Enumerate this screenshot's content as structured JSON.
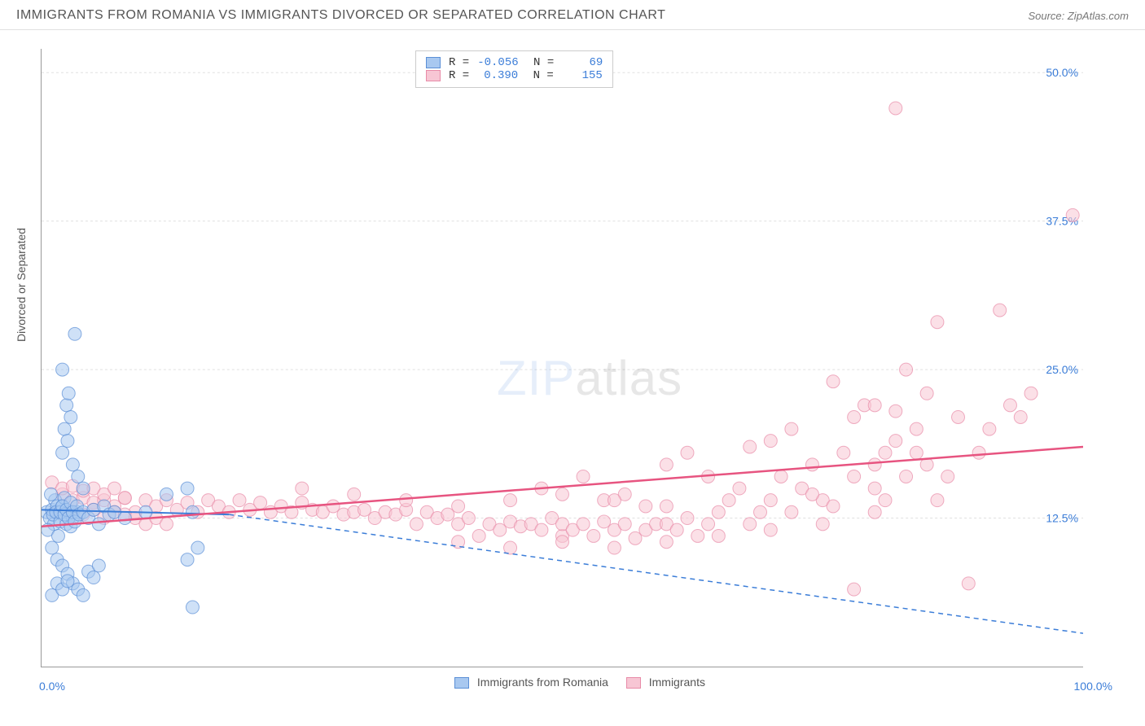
{
  "header": {
    "title": "IMMIGRANTS FROM ROMANIA VS IMMIGRANTS DIVORCED OR SEPARATED CORRELATION CHART",
    "source_prefix": "Source: ",
    "source_name": "ZipAtlas.com"
  },
  "chart": {
    "type": "scatter",
    "ylabel": "Divorced or Separated",
    "xlim": [
      0,
      100
    ],
    "ylim": [
      0,
      52
    ],
    "x_origin_label": "0.0%",
    "x_max_label": "100.0%",
    "y_ticks": [
      12.5,
      25.0,
      37.5,
      50.0
    ],
    "y_tick_labels": [
      "12.5%",
      "25.0%",
      "37.5%",
      "50.0%"
    ],
    "x_tick_positions": [
      0,
      12,
      25,
      37,
      50,
      62,
      75,
      87,
      100
    ],
    "background_color": "#ffffff",
    "grid_color": "#e0e0e0",
    "axis_color": "#999999",
    "marker_size": 8,
    "marker_opacity": 0.55,
    "series": {
      "romania": {
        "label": "Immigrants from Romania",
        "fill_color": "#a8c8f0",
        "stroke_color": "#5b8fd6",
        "R": "-0.056",
        "N": "69",
        "trend_line": {
          "x1": 0,
          "y1": 13.2,
          "x2": 18,
          "y2": 12.8,
          "dashed_extension": {
            "x1": 18,
            "y1": 12.8,
            "x2": 100,
            "y2": 2.8
          },
          "color": "#3b7dd8",
          "width": 2
        },
        "points": [
          [
            0.5,
            13.0
          ],
          [
            0.8,
            12.5
          ],
          [
            1.0,
            13.2
          ],
          [
            1.2,
            12.0
          ],
          [
            1.3,
            14.0
          ],
          [
            1.5,
            13.5
          ],
          [
            0.6,
            11.5
          ],
          [
            0.9,
            14.5
          ],
          [
            1.1,
            12.8
          ],
          [
            1.4,
            13.0
          ],
          [
            1.6,
            11.0
          ],
          [
            1.8,
            12.2
          ],
          [
            2.0,
            13.5
          ],
          [
            2.2,
            14.2
          ],
          [
            2.4,
            12.0
          ],
          [
            2.6,
            13.0
          ],
          [
            2.8,
            11.8
          ],
          [
            3.0,
            12.5
          ],
          [
            3.2,
            28.0
          ],
          [
            3.4,
            13.0
          ],
          [
            1.0,
            10.0
          ],
          [
            1.5,
            9.0
          ],
          [
            2.0,
            8.5
          ],
          [
            2.5,
            7.8
          ],
          [
            3.0,
            7.0
          ],
          [
            3.5,
            6.5
          ],
          [
            4.0,
            6.0
          ],
          [
            4.5,
            8.0
          ],
          [
            5.0,
            7.5
          ],
          [
            5.5,
            8.5
          ],
          [
            2.0,
            18.0
          ],
          [
            2.2,
            20.0
          ],
          [
            2.4,
            22.0
          ],
          [
            2.6,
            23.0
          ],
          [
            2.8,
            21.0
          ],
          [
            2.0,
            25.0
          ],
          [
            2.5,
            19.0
          ],
          [
            3.0,
            17.0
          ],
          [
            3.5,
            16.0
          ],
          [
            4.0,
            15.0
          ],
          [
            1.8,
            13.0
          ],
          [
            2.0,
            13.5
          ],
          [
            2.2,
            12.8
          ],
          [
            2.4,
            13.2
          ],
          [
            2.6,
            12.5
          ],
          [
            2.8,
            13.8
          ],
          [
            3.0,
            13.0
          ],
          [
            3.2,
            12.2
          ],
          [
            3.4,
            13.5
          ],
          [
            3.6,
            12.8
          ],
          [
            4.0,
            13.0
          ],
          [
            4.5,
            12.5
          ],
          [
            5.0,
            13.2
          ],
          [
            5.5,
            12.0
          ],
          [
            6.0,
            13.5
          ],
          [
            6.5,
            12.8
          ],
          [
            7.0,
            13.0
          ],
          [
            8.0,
            12.5
          ],
          [
            10.0,
            13.0
          ],
          [
            12.0,
            14.5
          ],
          [
            14.0,
            15.0
          ],
          [
            14.5,
            5.0
          ],
          [
            14.0,
            9.0
          ],
          [
            15.0,
            10.0
          ],
          [
            14.5,
            13.0
          ],
          [
            1.0,
            6.0
          ],
          [
            1.5,
            7.0
          ],
          [
            2.0,
            6.5
          ],
          [
            2.5,
            7.2
          ]
        ]
      },
      "immigrants": {
        "label": "Immigrants",
        "fill_color": "#f7c6d4",
        "stroke_color": "#e88ba8",
        "R": "0.390",
        "N": "155",
        "trend_line": {
          "x1": 0,
          "y1": 11.8,
          "x2": 100,
          "y2": 18.5,
          "color": "#e75480",
          "width": 2.5
        },
        "points": [
          [
            2,
            14.5
          ],
          [
            3,
            14.0
          ],
          [
            4,
            14.2
          ],
          [
            5,
            13.8
          ],
          [
            6,
            14.0
          ],
          [
            7,
            13.5
          ],
          [
            8,
            14.2
          ],
          [
            9,
            13.0
          ],
          [
            10,
            14.0
          ],
          [
            11,
            13.5
          ],
          [
            12,
            14.0
          ],
          [
            13,
            13.2
          ],
          [
            14,
            13.8
          ],
          [
            15,
            13.0
          ],
          [
            16,
            14.0
          ],
          [
            17,
            13.5
          ],
          [
            18,
            13.0
          ],
          [
            19,
            14.0
          ],
          [
            20,
            13.2
          ],
          [
            21,
            13.8
          ],
          [
            22,
            13.0
          ],
          [
            23,
            13.5
          ],
          [
            24,
            13.0
          ],
          [
            25,
            13.8
          ],
          [
            26,
            13.2
          ],
          [
            27,
            13.0
          ],
          [
            28,
            13.5
          ],
          [
            29,
            12.8
          ],
          [
            30,
            13.0
          ],
          [
            31,
            13.2
          ],
          [
            32,
            12.5
          ],
          [
            33,
            13.0
          ],
          [
            34,
            12.8
          ],
          [
            35,
            13.2
          ],
          [
            36,
            12.0
          ],
          [
            37,
            13.0
          ],
          [
            38,
            12.5
          ],
          [
            39,
            12.8
          ],
          [
            40,
            12.0
          ],
          [
            41,
            12.5
          ],
          [
            42,
            11.0
          ],
          [
            43,
            12.0
          ],
          [
            44,
            11.5
          ],
          [
            45,
            12.2
          ],
          [
            46,
            11.8
          ],
          [
            47,
            12.0
          ],
          [
            48,
            11.5
          ],
          [
            49,
            12.5
          ],
          [
            50,
            11.0
          ],
          [
            48,
            15.0
          ],
          [
            50,
            12.0
          ],
          [
            51,
            11.5
          ],
          [
            52,
            12.0
          ],
          [
            53,
            11.0
          ],
          [
            54,
            12.2
          ],
          [
            55,
            11.5
          ],
          [
            56,
            12.0
          ],
          [
            57,
            10.8
          ],
          [
            58,
            11.5
          ],
          [
            59,
            12.0
          ],
          [
            52,
            16.0
          ],
          [
            54,
            14.0
          ],
          [
            56,
            14.5
          ],
          [
            58,
            13.5
          ],
          [
            60,
            12.0
          ],
          [
            61,
            11.5
          ],
          [
            62,
            12.5
          ],
          [
            63,
            11.0
          ],
          [
            64,
            12.0
          ],
          [
            65,
            13.0
          ],
          [
            60,
            17.0
          ],
          [
            62,
            18.0
          ],
          [
            64,
            16.0
          ],
          [
            66,
            14.0
          ],
          [
            67,
            15.0
          ],
          [
            68,
            18.5
          ],
          [
            69,
            13.0
          ],
          [
            70,
            19.0
          ],
          [
            68,
            12.0
          ],
          [
            70,
            14.0
          ],
          [
            71,
            16.0
          ],
          [
            72,
            20.0
          ],
          [
            73,
            15.0
          ],
          [
            74,
            17.0
          ],
          [
            75,
            14.0
          ],
          [
            76,
            24.0
          ],
          [
            77,
            18.0
          ],
          [
            78,
            16.0
          ],
          [
            79,
            22.0
          ],
          [
            80,
            17.0
          ],
          [
            72,
            13.0
          ],
          [
            74,
            14.5
          ],
          [
            76,
            13.5
          ],
          [
            78,
            21.0
          ],
          [
            80,
            15.0
          ],
          [
            78,
            6.5
          ],
          [
            80,
            22.0
          ],
          [
            81,
            18.0
          ],
          [
            82,
            21.5
          ],
          [
            83,
            25.0
          ],
          [
            84,
            20.0
          ],
          [
            85,
            23.0
          ],
          [
            81,
            14.0
          ],
          [
            83,
            16.0
          ],
          [
            85,
            17.0
          ],
          [
            82,
            19.0
          ],
          [
            84,
            18.0
          ],
          [
            86,
            14.0
          ],
          [
            87,
            16.0
          ],
          [
            88,
            21.0
          ],
          [
            82,
            47.0
          ],
          [
            86,
            29.0
          ],
          [
            89,
            7.0
          ],
          [
            90,
            18.0
          ],
          [
            91,
            20.0
          ],
          [
            92,
            30.0
          ],
          [
            93,
            22.0
          ],
          [
            94,
            21.0
          ],
          [
            95,
            23.0
          ],
          [
            99,
            38.0
          ],
          [
            1,
            15.5
          ],
          [
            2,
            15.0
          ],
          [
            3,
            15.2
          ],
          [
            4,
            14.8
          ],
          [
            5,
            15.0
          ],
          [
            6,
            14.5
          ],
          [
            7,
            15.0
          ],
          [
            8,
            14.2
          ],
          [
            3,
            13.0
          ],
          [
            4,
            12.8
          ],
          [
            5,
            13.2
          ],
          [
            6,
            12.5
          ],
          [
            7,
            13.0
          ],
          [
            8,
            12.8
          ],
          [
            9,
            12.5
          ],
          [
            10,
            12.0
          ],
          [
            11,
            12.5
          ],
          [
            12,
            12.0
          ],
          [
            25,
            15.0
          ],
          [
            30,
            14.5
          ],
          [
            35,
            14.0
          ],
          [
            40,
            13.5
          ],
          [
            45,
            14.0
          ],
          [
            50,
            14.5
          ],
          [
            55,
            14.0
          ],
          [
            60,
            13.5
          ],
          [
            40,
            10.5
          ],
          [
            45,
            10.0
          ],
          [
            50,
            10.5
          ],
          [
            55,
            10.0
          ],
          [
            60,
            10.5
          ],
          [
            65,
            11.0
          ],
          [
            70,
            11.5
          ],
          [
            75,
            12.0
          ],
          [
            80,
            13.0
          ]
        ]
      }
    },
    "x_legend": {
      "s1": {
        "swatch_fill": "#a8c8f0",
        "swatch_border": "#5b8fd6",
        "label": "Immigrants from Romania"
      },
      "s2": {
        "swatch_fill": "#f7c6d4",
        "swatch_border": "#e88ba8",
        "label": "Immigrants"
      }
    },
    "watermark": {
      "part1": "ZIP",
      "part2": "atlas"
    }
  }
}
